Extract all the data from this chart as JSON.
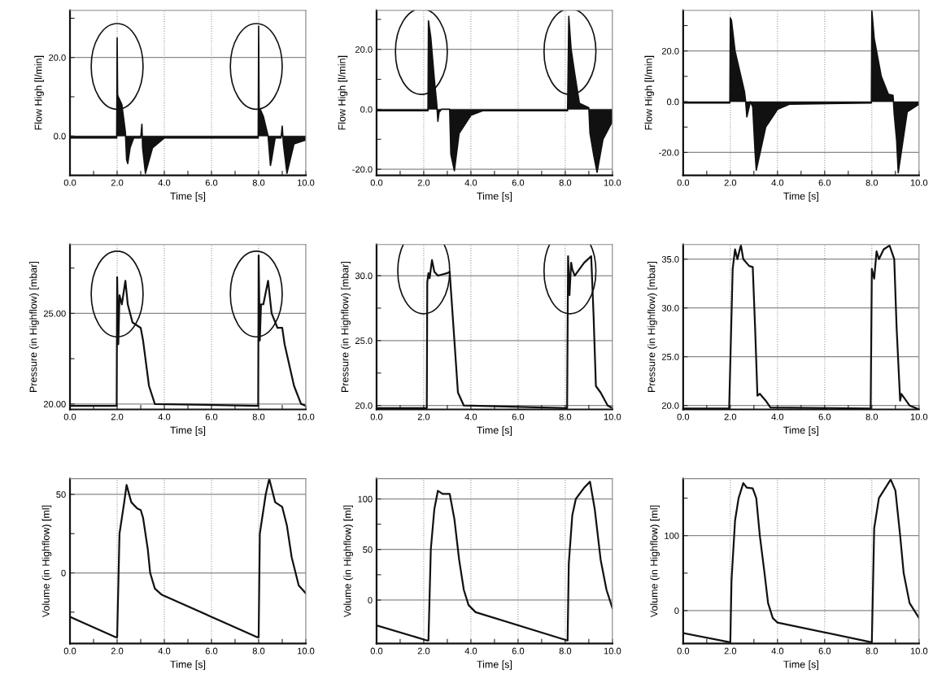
{
  "chart_data": [
    {
      "type": "area",
      "xlabel": "Time [s]",
      "ylabel": "Flow High [l/min]",
      "grid": true,
      "xlim": [
        0,
        10
      ],
      "ylim": [
        -10,
        32
      ],
      "xticks": [
        {
          "value": 0,
          "label": "0.0"
        },
        {
          "value": 1,
          "label": null
        },
        {
          "value": 2,
          "label": "2.0"
        },
        {
          "value": 3,
          "label": null
        },
        {
          "value": 4,
          "label": "4.0"
        },
        {
          "value": 5,
          "label": null
        },
        {
          "value": 6,
          "label": "6.0"
        },
        {
          "value": 7,
          "label": null
        },
        {
          "value": 8,
          "label": "8.0"
        },
        {
          "value": 9,
          "label": null
        },
        {
          "value": 10,
          "label": "10.0"
        }
      ],
      "yticks": [
        {
          "value": -10,
          "label": null
        },
        {
          "value": 0,
          "label": "0.0"
        },
        {
          "value": 10,
          "label": null
        },
        {
          "value": 20,
          "label": "20.0"
        },
        {
          "value": 30,
          "label": null
        }
      ],
      "series": [
        {
          "color": "#111111",
          "x": [
            0,
            1.98,
            2.0,
            2.02,
            2.05,
            2.2,
            2.35,
            2.4,
            2.45,
            2.55,
            2.7,
            3.0,
            3.05,
            3.08,
            3.2,
            3.5,
            4.0,
            7.98,
            8.0,
            8.02,
            8.05,
            8.2,
            8.4,
            8.5,
            8.55,
            8.7,
            8.95,
            9.0,
            9.05,
            9.2,
            9.5,
            10
          ],
          "values": [
            -0.5,
            -0.5,
            25,
            10.5,
            10,
            8,
            1,
            -6,
            -7,
            -3,
            -0.5,
            -0.5,
            3,
            -3,
            -9.5,
            -3,
            -0.5,
            -0.5,
            28,
            7,
            7,
            5,
            0,
            -7.5,
            -6,
            -0.5,
            -0.5,
            2.5,
            -2,
            -9.5,
            -2,
            -1
          ]
        }
      ]
    },
    {
      "type": "area",
      "xlabel": "Time [s]",
      "ylabel": "Flow High [l/min]",
      "grid": true,
      "xlim": [
        0,
        10
      ],
      "ylim": [
        -22,
        33
      ],
      "xticks": [
        {
          "value": 0,
          "label": "0.0"
        },
        {
          "value": 1,
          "label": null
        },
        {
          "value": 2,
          "label": "2.0"
        },
        {
          "value": 3,
          "label": null
        },
        {
          "value": 4,
          "label": "4.0"
        },
        {
          "value": 5,
          "label": null
        },
        {
          "value": 6,
          "label": "6.0"
        },
        {
          "value": 7,
          "label": null
        },
        {
          "value": 8,
          "label": "8.0"
        },
        {
          "value": 9,
          "label": null
        },
        {
          "value": 10,
          "label": "10.0"
        }
      ],
      "yticks": [
        {
          "value": -20,
          "label": "-20.0"
        },
        {
          "value": -10,
          "label": null
        },
        {
          "value": 0,
          "label": "0.0"
        },
        {
          "value": 10,
          "label": null
        },
        {
          "value": 20,
          "label": "20.0"
        },
        {
          "value": 30,
          "label": null
        }
      ],
      "series": [
        {
          "color": "#111111",
          "x": [
            0,
            2.18,
            2.2,
            2.3,
            2.45,
            2.55,
            2.6,
            2.65,
            2.75,
            3.1,
            3.15,
            3.3,
            3.5,
            4.0,
            4.5,
            8.1,
            8.15,
            8.25,
            8.4,
            8.6,
            9.0,
            9.05,
            9.2,
            9.35,
            9.6,
            10
          ],
          "values": [
            -0.5,
            -0.5,
            29.5,
            24,
            10,
            2,
            -4,
            -1,
            0,
            0,
            -15,
            -20.5,
            -8,
            -2,
            -0.5,
            -0.5,
            31,
            20,
            12,
            2,
            0.5,
            -8,
            -15,
            -21,
            -10,
            -4
          ]
        }
      ]
    },
    {
      "type": "area",
      "xlabel": "Time [s]",
      "ylabel": "Flow High [l/min]",
      "grid": true,
      "xlim": [
        0,
        10
      ],
      "ylim": [
        -29,
        36
      ],
      "xticks": [
        {
          "value": 0,
          "label": "0.0"
        },
        {
          "value": 1,
          "label": null
        },
        {
          "value": 2,
          "label": "2.0"
        },
        {
          "value": 3,
          "label": null
        },
        {
          "value": 4,
          "label": "4.0"
        },
        {
          "value": 5,
          "label": null
        },
        {
          "value": 6,
          "label": "6.0"
        },
        {
          "value": 7,
          "label": null
        },
        {
          "value": 8,
          "label": "8.0"
        },
        {
          "value": 9,
          "label": null
        },
        {
          "value": 10,
          "label": "10.0"
        }
      ],
      "yticks": [
        {
          "value": -20,
          "label": "-20.0"
        },
        {
          "value": -10,
          "label": null
        },
        {
          "value": 0,
          "label": "0.0"
        },
        {
          "value": 10,
          "label": null
        },
        {
          "value": 20,
          "label": "20.0"
        },
        {
          "value": 30,
          "label": null
        }
      ],
      "series": [
        {
          "color": "#111111",
          "x": [
            0,
            1.98,
            2.0,
            2.05,
            2.2,
            2.5,
            2.6,
            2.65,
            2.7,
            2.85,
            2.95,
            3.05,
            3.1,
            3.5,
            4.0,
            4.5,
            7.98,
            8.0,
            8.1,
            8.4,
            8.7,
            8.9,
            8.95,
            9.05,
            9.12,
            9.5,
            10
          ],
          "values": [
            -0.5,
            -0.5,
            33,
            32,
            20,
            8,
            4,
            0,
            -6,
            0,
            -2,
            -20,
            -27,
            -10,
            -3,
            -1,
            -0.5,
            36,
            25,
            10,
            3,
            2.5,
            -5,
            -15,
            -28,
            -4,
            -1
          ]
        }
      ]
    },
    {
      "type": "line",
      "xlabel": "Time [s]",
      "ylabel": "Pressure (in Highflow) [mbar]",
      "grid": true,
      "xlim": [
        0,
        10
      ],
      "ylim": [
        19.7,
        28.8
      ],
      "xticks": [
        {
          "value": 0,
          "label": "0.0"
        },
        {
          "value": 1,
          "label": null
        },
        {
          "value": 2,
          "label": "2.0"
        },
        {
          "value": 3,
          "label": null
        },
        {
          "value": 4,
          "label": "4.0"
        },
        {
          "value": 5,
          "label": null
        },
        {
          "value": 6,
          "label": "6.0"
        },
        {
          "value": 7,
          "label": null
        },
        {
          "value": 8,
          "label": "8.0"
        },
        {
          "value": 9,
          "label": null
        },
        {
          "value": 10,
          "label": "10.0"
        }
      ],
      "yticks": [
        {
          "value": 20,
          "label": "20.00"
        },
        {
          "value": 22.5,
          "label": null
        },
        {
          "value": 25,
          "label": "25.00"
        },
        {
          "value": 27.5,
          "label": null
        }
      ],
      "series": [
        {
          "color": "#111111",
          "x": [
            0,
            1.98,
            2.0,
            2.05,
            2.1,
            2.2,
            2.35,
            2.45,
            2.65,
            3.0,
            3.1,
            3.35,
            3.6,
            7.98,
            8.0,
            8.05,
            8.1,
            8.2,
            8.4,
            8.55,
            8.8,
            9.0,
            9.1,
            9.5,
            9.8,
            10
          ],
          "values": [
            19.9,
            19.9,
            27.0,
            23.3,
            26.0,
            25.5,
            26.8,
            25.5,
            24.5,
            24.2,
            23.5,
            21,
            20,
            19.9,
            28.2,
            23.5,
            25.5,
            25.5,
            26.8,
            25,
            24.2,
            24.2,
            23.3,
            21,
            20,
            19.9
          ]
        }
      ]
    },
    {
      "type": "line",
      "xlabel": "Time [s]",
      "ylabel": "Pressure (in Highflow) [mbar]",
      "grid": true,
      "xlim": [
        0,
        10
      ],
      "ylim": [
        19.7,
        32.4
      ],
      "xticks": [
        {
          "value": 0,
          "label": "0.0"
        },
        {
          "value": 1,
          "label": null
        },
        {
          "value": 2,
          "label": "2.0"
        },
        {
          "value": 3,
          "label": null
        },
        {
          "value": 4,
          "label": "4.0"
        },
        {
          "value": 5,
          "label": null
        },
        {
          "value": 6,
          "label": "6.0"
        },
        {
          "value": 7,
          "label": null
        },
        {
          "value": 8,
          "label": "8.0"
        },
        {
          "value": 9,
          "label": null
        },
        {
          "value": 10,
          "label": "10.0"
        }
      ],
      "yticks": [
        {
          "value": 20,
          "label": "20.0"
        },
        {
          "value": 22.5,
          "label": null
        },
        {
          "value": 25,
          "label": "25.0"
        },
        {
          "value": 27.5,
          "label": null
        },
        {
          "value": 30,
          "label": "30.0"
        }
      ],
      "series": [
        {
          "color": "#111111",
          "x": [
            0,
            2.13,
            2.15,
            2.2,
            2.25,
            2.35,
            2.45,
            2.6,
            3.0,
            3.1,
            3.3,
            3.45,
            3.7,
            8.08,
            8.12,
            8.18,
            8.25,
            8.3,
            8.4,
            8.8,
            9.1,
            9.2,
            9.3,
            9.5,
            9.8,
            10
          ],
          "values": [
            19.8,
            19.8,
            29.5,
            30.2,
            29.8,
            31.2,
            30.3,
            30,
            30.2,
            30.3,
            25,
            21,
            20,
            19.8,
            31.5,
            28.5,
            31,
            30.5,
            30,
            31,
            31.5,
            27,
            21.5,
            21,
            20,
            19.8
          ]
        }
      ]
    },
    {
      "type": "line",
      "xlabel": "Time [s]",
      "ylabel": "Pressure (in Highflow) [mbar]",
      "grid": true,
      "xlim": [
        0,
        10
      ],
      "ylim": [
        19.6,
        36.5
      ],
      "xticks": [
        {
          "value": 0,
          "label": "0.0"
        },
        {
          "value": 1,
          "label": null
        },
        {
          "value": 2,
          "label": "2.0"
        },
        {
          "value": 3,
          "label": null
        },
        {
          "value": 4,
          "label": "4.0"
        },
        {
          "value": 5,
          "label": null
        },
        {
          "value": 6,
          "label": "6.0"
        },
        {
          "value": 7,
          "label": null
        },
        {
          "value": 8,
          "label": "8.0"
        },
        {
          "value": 9,
          "label": null
        },
        {
          "value": 10,
          "label": "10.0"
        }
      ],
      "yticks": [
        {
          "value": 20,
          "label": "20.0"
        },
        {
          "value": 25,
          "label": "25.0"
        },
        {
          "value": 30,
          "label": "30.0"
        },
        {
          "value": 35,
          "label": "35.0"
        }
      ],
      "series": [
        {
          "color": "#111111",
          "x": [
            0,
            1.95,
            2.1,
            2.2,
            2.3,
            2.4,
            2.45,
            2.55,
            2.8,
            2.95,
            3.05,
            3.15,
            3.25,
            3.5,
            3.7,
            7.95,
            8.0,
            8.1,
            8.2,
            8.3,
            8.5,
            8.75,
            8.95,
            9.05,
            9.2,
            9.25,
            9.6,
            10
          ],
          "values": [
            19.7,
            19.7,
            34,
            36,
            35,
            36,
            36.4,
            35,
            34.3,
            34.2,
            28,
            21,
            21.2,
            20.5,
            19.8,
            19.7,
            34,
            33,
            35.8,
            35,
            36,
            36.4,
            35,
            28,
            20.5,
            21.2,
            20,
            19.6
          ]
        }
      ]
    },
    {
      "type": "line",
      "xlabel": "Time [s]",
      "ylabel": "Volume (in Highflow) [ml]",
      "grid": true,
      "xlim": [
        0,
        10
      ],
      "ylim": [
        -45,
        60
      ],
      "xticks": [
        {
          "value": 0,
          "label": "0.0"
        },
        {
          "value": 1,
          "label": null
        },
        {
          "value": 2,
          "label": "2.0"
        },
        {
          "value": 3,
          "label": null
        },
        {
          "value": 4,
          "label": "4.0"
        },
        {
          "value": 5,
          "label": null
        },
        {
          "value": 6,
          "label": "6.0"
        },
        {
          "value": 7,
          "label": null
        },
        {
          "value": 8,
          "label": "8.0"
        },
        {
          "value": 9,
          "label": null
        },
        {
          "value": 10,
          "label": "10.0"
        }
      ],
      "yticks": [
        {
          "value": -25,
          "label": null
        },
        {
          "value": 0,
          "label": "0"
        },
        {
          "value": 25,
          "label": null
        },
        {
          "value": 50,
          "label": "50"
        }
      ],
      "series": [
        {
          "color": "#111111",
          "x": [
            0,
            1.95,
            2.0,
            2.1,
            2.3,
            2.4,
            2.6,
            2.85,
            3.0,
            3.1,
            3.3,
            3.4,
            3.6,
            3.9,
            7.95,
            8.0,
            8.05,
            8.3,
            8.45,
            8.7,
            9.0,
            9.2,
            9.4,
            9.7,
            10
          ],
          "values": [
            -28,
            -41,
            -41,
            25,
            45,
            56,
            45,
            41,
            40,
            35,
            15,
            0,
            -10,
            -14,
            -41,
            -41,
            25,
            50,
            60,
            45,
            42,
            30,
            10,
            -8,
            -13
          ]
        }
      ]
    },
    {
      "type": "line",
      "xlabel": "Time [s]",
      "ylabel": "Volume (in Highflow) [ml]",
      "grid": true,
      "xlim": [
        0,
        10
      ],
      "ylim": [
        -43,
        120
      ],
      "xticks": [
        {
          "value": 0,
          "label": "0.0"
        },
        {
          "value": 1,
          "label": null
        },
        {
          "value": 2,
          "label": "2.0"
        },
        {
          "value": 3,
          "label": null
        },
        {
          "value": 4,
          "label": "4.0"
        },
        {
          "value": 5,
          "label": null
        },
        {
          "value": 6,
          "label": "6.0"
        },
        {
          "value": 7,
          "label": null
        },
        {
          "value": 8,
          "label": "8.0"
        },
        {
          "value": 9,
          "label": null
        },
        {
          "value": 10,
          "label": "10.0"
        }
      ],
      "yticks": [
        {
          "value": 0,
          "label": "0"
        },
        {
          "value": 25,
          "label": null
        },
        {
          "value": 50,
          "label": "50"
        },
        {
          "value": 75,
          "label": null
        },
        {
          "value": 100,
          "label": "100"
        }
      ],
      "series": [
        {
          "color": "#111111",
          "x": [
            0,
            2.15,
            2.2,
            2.3,
            2.45,
            2.6,
            2.8,
            3.1,
            3.3,
            3.5,
            3.7,
            3.9,
            4.2,
            8.1,
            8.15,
            8.3,
            8.45,
            8.8,
            9.05,
            9.25,
            9.5,
            9.75,
            10
          ],
          "values": [
            -25,
            -40,
            -40,
            50,
            90,
            108,
            105,
            105,
            80,
            40,
            10,
            -5,
            -12,
            -40,
            36,
            84,
            100,
            111,
            117,
            90,
            40,
            10,
            -8
          ]
        }
      ]
    },
    {
      "type": "line",
      "xlabel": "Time [s]",
      "ylabel": "Volume (in Highflow) [ml]",
      "grid": true,
      "xlim": [
        0,
        10
      ],
      "ylim": [
        -44,
        176
      ],
      "xticks": [
        {
          "value": 0,
          "label": "0.0"
        },
        {
          "value": 1,
          "label": null
        },
        {
          "value": 2,
          "label": "2.0"
        },
        {
          "value": 3,
          "label": null
        },
        {
          "value": 4,
          "label": "4.0"
        },
        {
          "value": 5,
          "label": null
        },
        {
          "value": 6,
          "label": "6.0"
        },
        {
          "value": 7,
          "label": null
        },
        {
          "value": 8,
          "label": "8.0"
        },
        {
          "value": 9,
          "label": null
        },
        {
          "value": 10,
          "label": "10.0"
        }
      ],
      "yticks": [
        {
          "value": 0,
          "label": "0"
        },
        {
          "value": 50,
          "label": null
        },
        {
          "value": 100,
          "label": "100"
        },
        {
          "value": 150,
          "label": null
        }
      ],
      "series": [
        {
          "color": "#111111",
          "x": [
            0,
            1.95,
            2.0,
            2.05,
            2.2,
            2.35,
            2.55,
            2.7,
            2.95,
            3.1,
            3.25,
            3.45,
            3.6,
            3.8,
            4.0,
            7.95,
            8.0,
            8.1,
            8.3,
            8.6,
            8.8,
            9.0,
            9.2,
            9.35,
            9.6,
            10
          ],
          "values": [
            -30,
            -42,
            -42,
            40,
            120,
            150,
            170,
            164,
            163,
            150,
            100,
            50,
            10,
            -10,
            -16,
            -42,
            -42,
            110,
            150,
            165,
            175,
            160,
            100,
            50,
            10,
            -10
          ]
        }
      ]
    }
  ]
}
